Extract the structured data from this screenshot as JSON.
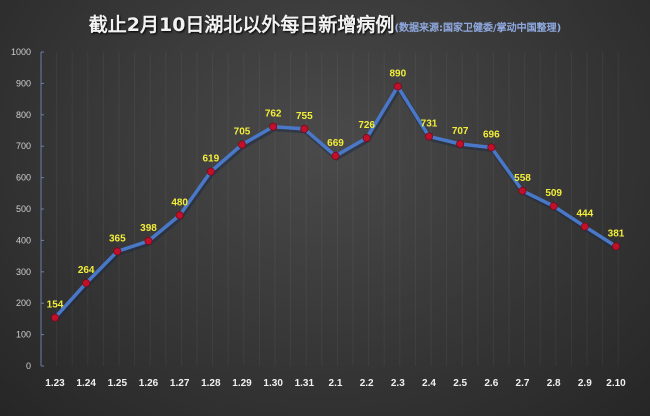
{
  "title": "截止2月10日湖北以外每日新增病例",
  "subtitle": "(数据来源:国家卫健委/掌动中国整理)",
  "colors": {
    "line": "#4a78c8",
    "marker": "#c0102a",
    "data_label": "#f2ee3a",
    "axis": "#6a7fa8",
    "background": "#3a3a3a"
  },
  "chart_data": {
    "type": "line",
    "title": "截止2月10日湖北以外每日新增病例",
    "subtitle": "(数据来源:国家卫健委/掌动中国整理)",
    "categories": [
      "1.23",
      "1.24",
      "1.25",
      "1.26",
      "1.27",
      "1.28",
      "1.29",
      "1.30",
      "1.31",
      "2.1",
      "2.2",
      "2.3",
      "2.4",
      "2.5",
      "2.6",
      "2.7",
      "2.8",
      "2.9",
      "2.10"
    ],
    "series": [
      {
        "name": "湖北以外每日新增病例",
        "values": [
          154,
          264,
          365,
          398,
          480,
          619,
          705,
          762,
          755,
          669,
          726,
          890,
          731,
          707,
          696,
          558,
          509,
          444,
          381
        ]
      }
    ],
    "xlabel": "",
    "ylabel": "",
    "ylim": [
      0,
      1000
    ],
    "yticks": [
      0,
      100,
      200,
      300,
      400,
      500,
      600,
      700,
      800,
      900,
      1000
    ],
    "grid": "vertical faint",
    "legend": "none",
    "data_labels": true
  }
}
